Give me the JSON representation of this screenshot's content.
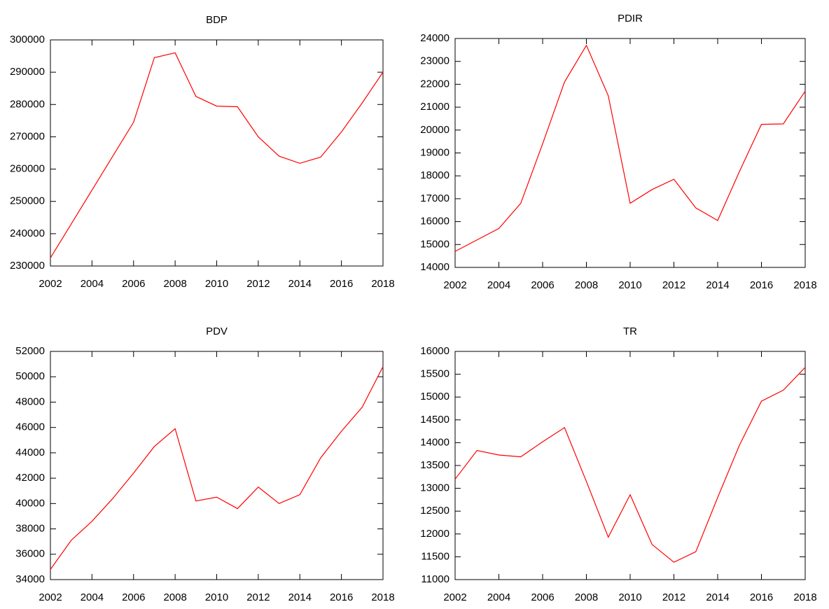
{
  "chart_data": [
    {
      "type": "line",
      "title": "BDP",
      "color": "#ff0000",
      "x": [
        2002,
        2003,
        2004,
        2005,
        2006,
        2007,
        2008,
        2009,
        2010,
        2011,
        2012,
        2013,
        2014,
        2015,
        2016,
        2017,
        2018
      ],
      "values": [
        232500,
        243000,
        253500,
        264000,
        274500,
        294500,
        296000,
        282500,
        279500,
        279300,
        270000,
        264000,
        261800,
        263700,
        271500,
        280500,
        290000
      ],
      "xlim": [
        2002,
        2018
      ],
      "xticks": [
        2002,
        2004,
        2006,
        2008,
        2010,
        2012,
        2014,
        2016,
        2018
      ],
      "ylim": [
        230000,
        300000
      ],
      "yticks": [
        230000,
        240000,
        250000,
        260000,
        270000,
        280000,
        290000,
        300000
      ]
    },
    {
      "type": "line",
      "title": "PDIR",
      "color": "#ff0000",
      "x": [
        2002,
        2003,
        2004,
        2005,
        2006,
        2007,
        2008,
        2009,
        2010,
        2011,
        2012,
        2013,
        2014,
        2015,
        2016,
        2017,
        2018
      ],
      "values": [
        14700,
        15200,
        15700,
        16800,
        19400,
        22100,
        23700,
        21500,
        16800,
        17400,
        17850,
        16600,
        16050,
        18200,
        20250,
        20270,
        21700
      ],
      "xlim": [
        2002,
        2018
      ],
      "xticks": [
        2002,
        2004,
        2006,
        2008,
        2010,
        2012,
        2014,
        2016,
        2018
      ],
      "ylim": [
        14000,
        24000
      ],
      "yticks": [
        14000,
        15000,
        16000,
        17000,
        18000,
        19000,
        20000,
        21000,
        22000,
        23000,
        24000
      ]
    },
    {
      "type": "line",
      "title": "PDV",
      "color": "#ff0000",
      "x": [
        2002,
        2003,
        2004,
        2005,
        2006,
        2007,
        2008,
        2009,
        2010,
        2011,
        2012,
        2013,
        2014,
        2015,
        2016,
        2017,
        2018
      ],
      "values": [
        34800,
        37100,
        38600,
        40400,
        42400,
        44500,
        45900,
        40200,
        40500,
        39600,
        41300,
        40000,
        40700,
        43600,
        45700,
        47600,
        50800
      ],
      "xlim": [
        2002,
        2018
      ],
      "xticks": [
        2002,
        2004,
        2006,
        2008,
        2010,
        2012,
        2014,
        2016,
        2018
      ],
      "ylim": [
        34000,
        52000
      ],
      "yticks": [
        34000,
        36000,
        38000,
        40000,
        42000,
        44000,
        46000,
        48000,
        50000,
        52000
      ]
    },
    {
      "type": "line",
      "title": "TR",
      "color": "#ff0000",
      "x": [
        2002,
        2003,
        2004,
        2005,
        2006,
        2007,
        2008,
        2009,
        2010,
        2011,
        2012,
        2013,
        2014,
        2015,
        2016,
        2017,
        2018
      ],
      "values": [
        13200,
        13830,
        13730,
        13690,
        14020,
        14330,
        13150,
        11930,
        12860,
        11770,
        11380,
        11610,
        12800,
        13950,
        14910,
        15150,
        15650
      ],
      "xlim": [
        2002,
        2018
      ],
      "xticks": [
        2002,
        2004,
        2006,
        2008,
        2010,
        2012,
        2014,
        2016,
        2018
      ],
      "ylim": [
        11000,
        16000
      ],
      "yticks": [
        11000,
        11500,
        12000,
        12500,
        13000,
        13500,
        14000,
        14500,
        15000,
        15500,
        16000
      ]
    }
  ]
}
